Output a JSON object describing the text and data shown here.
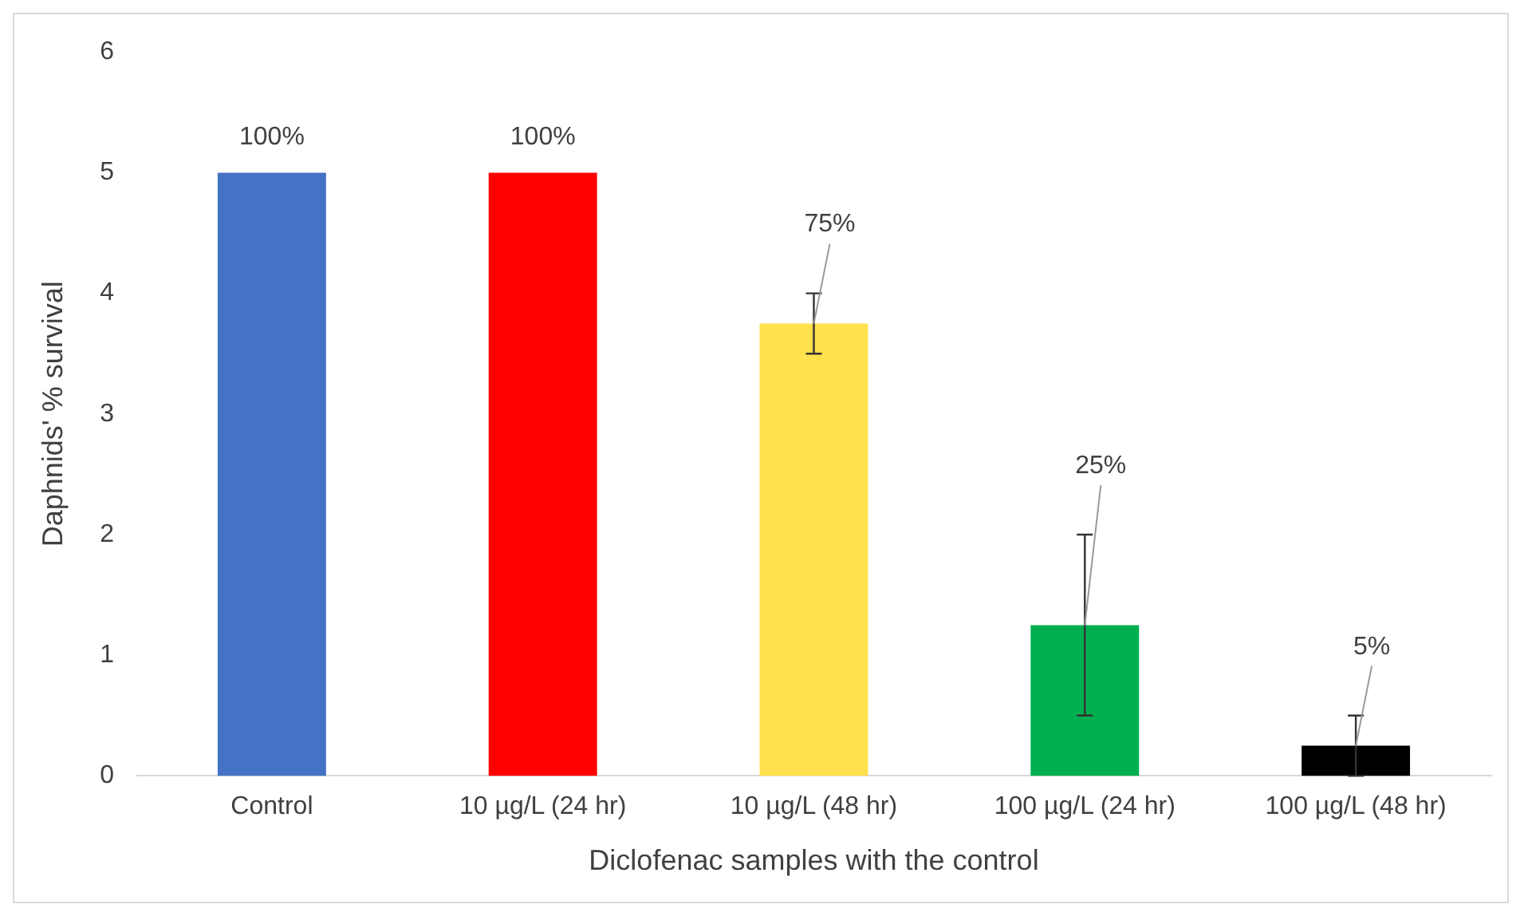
{
  "chart_data": {
    "type": "bar",
    "xlabel": "Diclofenac samples with the control",
    "ylabel": "Daphnids' % survival",
    "categories": [
      "Control",
      "10 µg/L (24 hr)",
      "10 µg/L (48 hr)",
      "100 µg/L (24 hr)",
      "100 µg/L (48 hr)"
    ],
    "values": [
      5,
      5,
      3.75,
      1.25,
      0.25
    ],
    "colors": [
      "#4472c4",
      "#ff0000",
      "#ffe14d",
      "#00b050",
      "#000000"
    ],
    "errors": [
      0,
      0,
      0.25,
      0.75,
      0.25
    ],
    "annotations": [
      {
        "text": "100%",
        "x": "Control",
        "y": 5
      },
      {
        "text": "100%",
        "x": "10 µg/L (24 hr)",
        "y": 5
      },
      {
        "text": "75%",
        "x": "10 µg/L (48 hr)",
        "y": 3.75
      },
      {
        "text": "25%",
        "x": "100 µg/L (24 hr)",
        "y": 1.25
      },
      {
        "text": "5%",
        "x": "100 µg/L (48 hr)",
        "y": 0.25
      }
    ],
    "ylim": [
      0,
      6
    ],
    "yticks": [
      0,
      1,
      2,
      3,
      4,
      5,
      6
    ],
    "grid": false,
    "legend": false
  }
}
